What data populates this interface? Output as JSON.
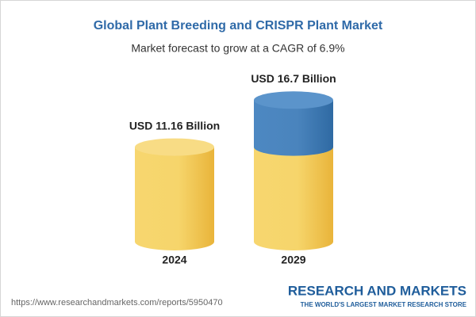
{
  "chart_data": {
    "type": "cylinder",
    "title": "Global Plant Breeding and CRISPR Plant Market",
    "subtitle": "Market forecast to grow at a CAGR of 6.9%",
    "categories": [
      "2024",
      "2029"
    ],
    "values": [
      11.16,
      16.7
    ],
    "value_labels": [
      "USD 11.16 Billion",
      "USD 16.7 Billion"
    ],
    "color": "#f3c54d",
    "growth_color": "#3f79b3",
    "source": "https://www.researchandmarkets.com/reports/5950470",
    "brand": "RESEARCH AND MARKETS",
    "tagline": "THE WORLD'S LARGEST MARKET RESEARCH STORE"
  }
}
